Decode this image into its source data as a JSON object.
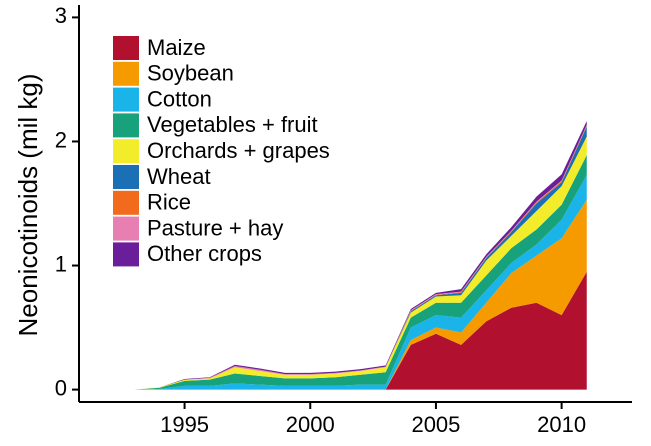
{
  "chart_data": {
    "type": "area",
    "stacked": true,
    "title": "",
    "xlabel": "",
    "ylabel": "Neonicotinoids (mil kg)",
    "xlim": [
      1990.8,
      2012.8
    ],
    "ylim": [
      -0.1,
      3.1
    ],
    "xticks": [
      1995,
      2000,
      2005,
      2010
    ],
    "yticks": [
      0,
      1,
      2,
      3
    ],
    "grid": false,
    "legend_position": "top-left",
    "x": [
      1992,
      1993,
      1994,
      1995,
      1996,
      1997,
      1998,
      1999,
      2000,
      2001,
      2002,
      2003,
      2004,
      2005,
      2006,
      2007,
      2008,
      2009,
      2010,
      2011
    ],
    "series": [
      {
        "name": "Maize",
        "color": "#b2102f",
        "values": [
          0,
          0,
          0,
          0,
          0,
          0,
          0,
          0,
          0,
          0,
          0,
          0,
          0.36,
          0.45,
          0.36,
          0.55,
          0.66,
          0.7,
          0.6,
          0.95
        ]
      },
      {
        "name": "Soybean",
        "color": "#f59b00",
        "values": [
          0,
          0,
          0,
          0,
          0,
          0,
          0,
          0,
          0,
          0,
          0,
          0,
          0.04,
          0.05,
          0.1,
          0.15,
          0.28,
          0.38,
          0.62,
          0.58
        ]
      },
      {
        "name": "Cotton",
        "color": "#1ab4e8",
        "values": [
          0,
          0,
          0.005,
          0.03,
          0.03,
          0.05,
          0.04,
          0.03,
          0.03,
          0.03,
          0.04,
          0.04,
          0.1,
          0.1,
          0.12,
          0.1,
          0.08,
          0.09,
          0.15,
          0.2
        ]
      },
      {
        "name": "Vegetables + fruit",
        "color": "#17a27c",
        "values": [
          0,
          0,
          0.01,
          0.04,
          0.05,
          0.08,
          0.07,
          0.06,
          0.06,
          0.07,
          0.08,
          0.1,
          0.08,
          0.1,
          0.12,
          0.12,
          0.12,
          0.12,
          0.12,
          0.16
        ]
      },
      {
        "name": "Orchards + grapes",
        "color": "#f2ec2a",
        "values": [
          0,
          0,
          0.003,
          0.01,
          0.01,
          0.05,
          0.04,
          0.03,
          0.03,
          0.03,
          0.03,
          0.04,
          0.04,
          0.05,
          0.06,
          0.12,
          0.1,
          0.15,
          0.15,
          0.15
        ]
      },
      {
        "name": "Wheat",
        "color": "#1b6fb5",
        "values": [
          0,
          0,
          0,
          0,
          0,
          0,
          0,
          0,
          0,
          0,
          0,
          0,
          0.01,
          0.01,
          0.02,
          0.02,
          0.03,
          0.06,
          0.03,
          0.08
        ]
      },
      {
        "name": "Rice",
        "color": "#f26a1b",
        "values": [
          0,
          0,
          0,
          0,
          0,
          0,
          0,
          0,
          0,
          0,
          0,
          0,
          0.005,
          0.005,
          0.005,
          0.005,
          0.005,
          0.01,
          0.01,
          0.01
        ]
      },
      {
        "name": "Pasture + hay",
        "color": "#e77fb3",
        "values": [
          0,
          0,
          0,
          0,
          0.005,
          0.01,
          0.01,
          0.005,
          0.005,
          0.005,
          0.005,
          0.005,
          0.005,
          0.005,
          0.005,
          0.005,
          0.005,
          0.005,
          0.005,
          0.005
        ]
      },
      {
        "name": "Other crops",
        "color": "#6a1e9a",
        "values": [
          0,
          0,
          0,
          0.005,
          0.005,
          0.01,
          0.01,
          0.01,
          0.01,
          0.01,
          0.01,
          0.01,
          0.01,
          0.01,
          0.02,
          0.02,
          0.03,
          0.04,
          0.05,
          0.03
        ]
      }
    ]
  }
}
